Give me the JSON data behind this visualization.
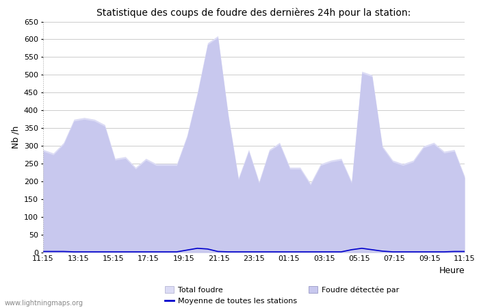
{
  "title": "Statistique des coups de foudre des dernières 24h pour la station:",
  "xlabel": "Heure",
  "ylabel": "Nb /h",
  "ylim": [
    0,
    650
  ],
  "yticks": [
    0,
    50,
    100,
    150,
    200,
    250,
    300,
    350,
    400,
    450,
    500,
    550,
    600,
    650
  ],
  "x_labels": [
    "11:15",
    "13:15",
    "15:15",
    "17:15",
    "19:15",
    "21:15",
    "23:15",
    "01:15",
    "03:15",
    "05:15",
    "07:15",
    "09:15",
    "11:15"
  ],
  "fill_color_total": "#dcdcf5",
  "fill_color_detectee": "#c8c8ee",
  "line_color": "#0000cc",
  "background_color": "#ffffff",
  "grid_color": "#cccccc",
  "watermark": "www.lightningmaps.org",
  "legend_total_label": "Total foudre",
  "legend_moyenne_label": "Moyenne de toutes les stations",
  "legend_detectee_label": "Foudre détectée par",
  "total_foudre_values": [
    290,
    280,
    310,
    375,
    380,
    375,
    360,
    265,
    270,
    240,
    265,
    250,
    250,
    250,
    330,
    450,
    590,
    610,
    390,
    210,
    290,
    200,
    290,
    310,
    240,
    240,
    195,
    250,
    260,
    265,
    200,
    510,
    500,
    300,
    260,
    250,
    260,
    300,
    310,
    285,
    290,
    215
  ],
  "foudre_detectee_values": [
    285,
    275,
    305,
    370,
    375,
    370,
    355,
    260,
    265,
    235,
    260,
    245,
    245,
    245,
    325,
    445,
    585,
    605,
    385,
    205,
    285,
    195,
    285,
    305,
    235,
    235,
    190,
    245,
    255,
    260,
    195,
    505,
    495,
    295,
    255,
    245,
    255,
    295,
    305,
    280,
    285,
    210
  ],
  "moyenne_values": [
    3,
    3,
    3,
    2,
    2,
    2,
    2,
    2,
    2,
    2,
    2,
    2,
    2,
    2,
    7,
    12,
    10,
    3,
    2,
    2,
    2,
    2,
    2,
    2,
    2,
    2,
    2,
    2,
    2,
    2,
    8,
    12,
    8,
    4,
    2,
    2,
    2,
    2,
    2,
    2,
    3,
    3
  ]
}
